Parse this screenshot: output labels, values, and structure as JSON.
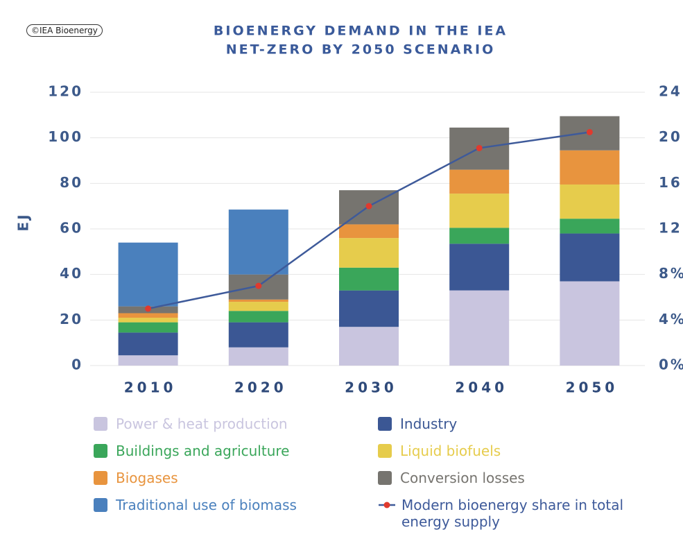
{
  "logo": "©IEA Bioenergy",
  "chart_data": {
    "type": "bar",
    "stacked": true,
    "title": [
      "BIOENERGY DEMAND IN THE IEA",
      "NET-ZERO BY 2050 SCENARIO"
    ],
    "y_label": "EJ",
    "categories": [
      "2010",
      "2020",
      "2030",
      "2040",
      "2050"
    ],
    "ylim": [
      0,
      120
    ],
    "yticks": [
      0,
      20,
      40,
      60,
      80,
      100,
      120
    ],
    "y2lim": [
      0,
      24
    ],
    "y2ticks": [
      {
        "value": 0,
        "label": "0%"
      },
      {
        "value": 4,
        "label": "4%"
      },
      {
        "value": 8,
        "label": "8%"
      },
      12,
      16,
      20,
      24
    ],
    "grid": true,
    "series": [
      {
        "name": "Power & heat production",
        "color": "#c9c5df",
        "values": [
          4.5,
          8,
          17,
          33,
          37
        ]
      },
      {
        "name": "Industry",
        "color": "#3b5794",
        "values": [
          10,
          11,
          16,
          20.5,
          21
        ]
      },
      {
        "name": "Buildings and agriculture",
        "color": "#3aa65a",
        "values": [
          4.5,
          5,
          10,
          7,
          6.5
        ]
      },
      {
        "name": "Liquid biofuels",
        "color": "#e6cc4c",
        "values": [
          2,
          4,
          13,
          15,
          15
        ]
      },
      {
        "name": "Biogases",
        "color": "#e8943e",
        "values": [
          2,
          1,
          6,
          10.5,
          15
        ]
      },
      {
        "name": "Conversion losses",
        "color": "#76746f",
        "values": [
          3,
          11,
          15,
          18.5,
          15
        ]
      },
      {
        "name": "Traditional use of biomass",
        "color": "#4a80bd",
        "values": [
          28,
          28.5,
          0,
          0,
          0
        ]
      },
      {
        "name": "Modern bioenergy share in total energy supply",
        "type": "line",
        "axis": "y2",
        "color": "#3e5a9a",
        "marker_color": "#e03a2e",
        "values": [
          5,
          7,
          14,
          19.1,
          20.5
        ]
      }
    ]
  }
}
